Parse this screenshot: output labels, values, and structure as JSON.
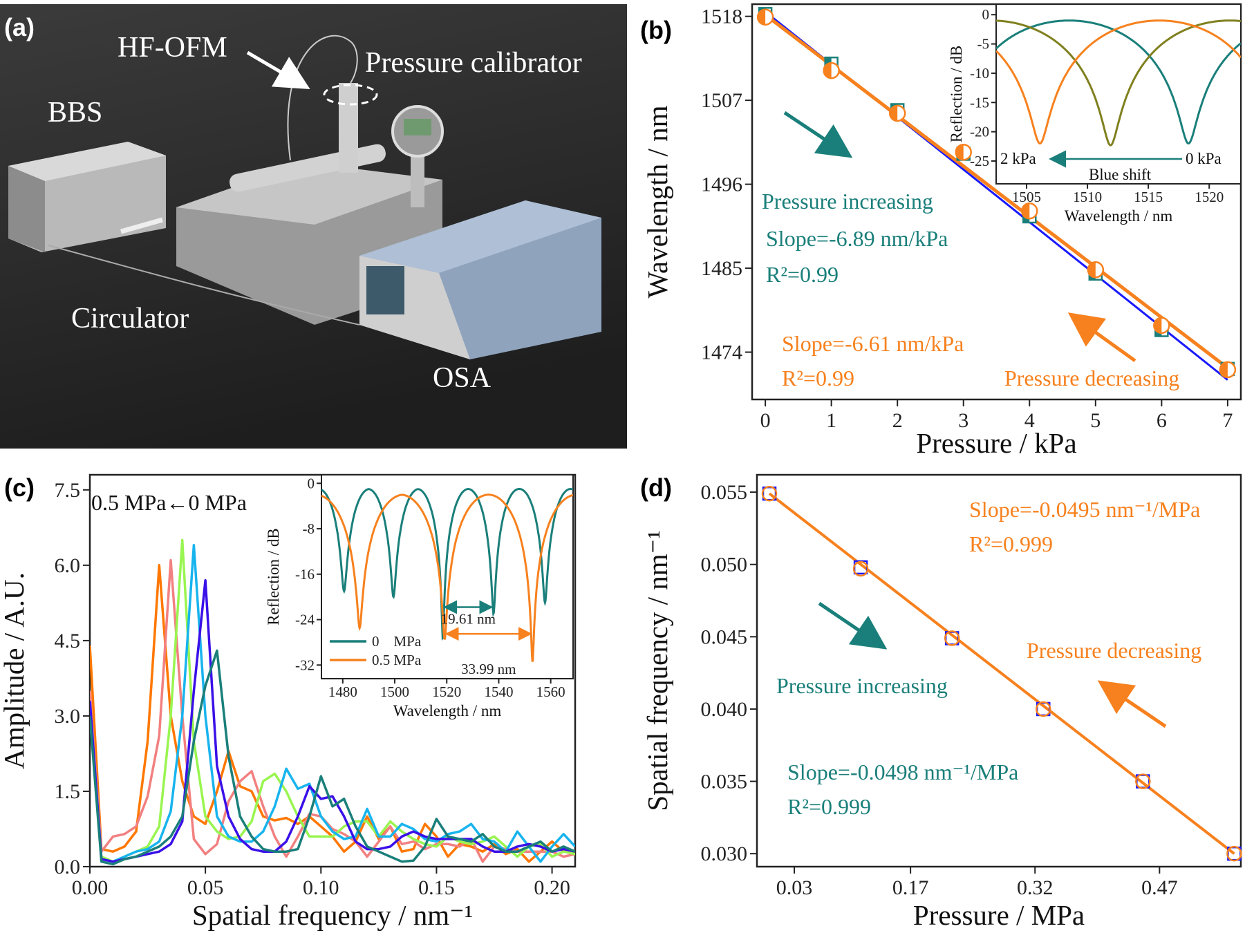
{
  "panel_labels": {
    "a": "(a)",
    "b": "(b)",
    "c": "(c)",
    "d": "(d)"
  },
  "panel_a": {
    "type": "photo-render",
    "labels": {
      "hf_ofm": "HF-OFM",
      "pressure_calibrator": "Pressure calibrator",
      "bbs": "BBS",
      "circulator": "Circulator",
      "osa": "OSA"
    }
  },
  "colors": {
    "teal": "#1a7f7a",
    "orange": "#f7811e",
    "blue_fit": "#1a1aff",
    "olive": "#808020",
    "c_series": [
      "#ff7700",
      "#f28080",
      "#99f550",
      "#18b4ee",
      "#3a10e8",
      "#1a7f7a"
    ]
  },
  "chart_data": [
    {
      "id": "b",
      "type": "scatter",
      "xlabel": "Pressure / kPa",
      "ylabel": "Wavelength / nm",
      "xlim": [
        -0.2,
        7.2
      ],
      "ylim": [
        1467.8,
        1519.6
      ],
      "xticks": [
        0,
        1,
        2,
        3,
        4,
        5,
        6,
        7
      ],
      "yticks": [
        1474,
        1485,
        1496,
        1507,
        1518
      ],
      "series": [
        {
          "name": "Pressure increasing",
          "marker": "square",
          "x": [
            0,
            1,
            2,
            3,
            4,
            5,
            6,
            7
          ],
          "y": [
            1518.3,
            1511.8,
            1505.7,
            1500.0,
            1491.8,
            1484.3,
            1476.9,
            1471.8
          ],
          "fit": {
            "slope": -6.89,
            "y0": 1518.6
          }
        },
        {
          "name": "Pressure decreasing",
          "marker": "circle",
          "x": [
            0,
            1,
            2,
            3,
            4,
            5,
            6,
            7
          ],
          "y": [
            1517.9,
            1510.9,
            1505.3,
            1500.2,
            1492.5,
            1484.8,
            1477.5,
            1471.7
          ],
          "fit": {
            "slope": -6.61,
            "y0": 1518.2
          }
        }
      ],
      "annotations": {
        "increasing": "Pressure increasing",
        "slope_inc": "Slope=-6.89 nm/kPa",
        "r2_inc": "R²=0.99",
        "slope_dec": "Slope=-6.61 nm/kPa",
        "r2_dec": "R²=0.99",
        "decreasing": "Pressure decreasing"
      }
    },
    {
      "id": "b_inset",
      "type": "line",
      "xlabel": "Wavelength / nm",
      "ylabel": "Reflection / dB",
      "xlim": [
        1502.5,
        1522.6
      ],
      "ylim": [
        -28.9,
        1.8
      ],
      "xticks": [
        1505,
        1510,
        1515,
        1520
      ],
      "yticks": [
        0,
        -5,
        -10,
        -15,
        -20,
        -25
      ],
      "period": 19.6,
      "max_db": -1,
      "series": [
        {
          "label": "0 kPa",
          "color": "teal",
          "dips": [
            {
              "wavelength": 1518.3,
              "depth": -22
            },
            {
              "wavelength": 1498.7,
              "depth": -22
            }
          ]
        },
        {
          "label": "",
          "color": "olive",
          "dips": [
            {
              "wavelength": 1511.9,
              "depth": -22.3
            },
            {
              "wavelength": 1531.5,
              "depth": -22.3
            }
          ]
        },
        {
          "label": "2 kPa",
          "color": "orange",
          "dips": [
            {
              "wavelength": 1506.1,
              "depth": -22
            },
            {
              "wavelength": 1525.7,
              "depth": -22
            }
          ]
        }
      ],
      "annotations": {
        "from": "0 kPa",
        "to": "2 kPa",
        "shift": "Blue shift"
      }
    },
    {
      "id": "c",
      "type": "line",
      "xlabel": "Spatial frequency / nm⁻¹",
      "ylabel": "Amplitude / A.U.",
      "xlim": [
        0,
        0.21
      ],
      "ylim": [
        0,
        7.8
      ],
      "xticks": [
        "0.00",
        "0.05",
        "0.10",
        "0.15",
        "0.20"
      ],
      "yticks": [
        "0.0",
        "1.5",
        "3.0",
        "4.5",
        "6.0",
        "7.5"
      ],
      "x_step": 0.005,
      "series": [
        {
          "values": [
            4.4,
            0.35,
            0.3,
            0.4,
            0.7,
            2.5,
            6.0,
            3.0,
            1.7,
            1.0,
            0.85,
            1.5,
            2.3,
            1.6,
            1.5,
            1.0,
            0.92,
            0.97,
            0.85,
            1.0,
            0.8,
            0.6,
            0.3,
            0.5,
            1.0,
            0.55,
            0.8,
            0.3,
            0.35,
            0.85,
            0.6,
            0.2,
            0.45,
            0.4,
            0.3,
            0.45,
            0.25,
            0.35,
            0.1,
            0.3,
            0.5,
            0.3,
            0.3
          ]
        },
        {
          "values": [
            3.5,
            0.3,
            0.6,
            0.65,
            0.8,
            1.4,
            2.6,
            6.1,
            3.0,
            0.55,
            0.25,
            0.45,
            1.3,
            1.7,
            1.9,
            1.2,
            0.6,
            0.2,
            0.6,
            1.05,
            1.0,
            0.75,
            0.65,
            0.5,
            0.2,
            0.5,
            0.8,
            0.45,
            0.5,
            0.35,
            0.45,
            0.45,
            0.4,
            0.55,
            0.1,
            0.4,
            0.35,
            0.3,
            0.3,
            0.3,
            0.3,
            0.2,
            0.25
          ]
        },
        {
          "values": [
            3.0,
            0.2,
            0.1,
            0.2,
            0.3,
            0.4,
            0.8,
            3.0,
            6.5,
            2.5,
            1.0,
            0.7,
            0.55,
            0.6,
            0.9,
            1.7,
            1.85,
            1.5,
            1.0,
            0.6,
            0.6,
            0.6,
            0.8,
            0.9,
            0.9,
            0.6,
            0.9,
            0.7,
            0.55,
            0.45,
            0.4,
            0.6,
            0.5,
            0.45,
            0.5,
            0.6,
            0.4,
            0.2,
            0.4,
            0.45,
            0.2,
            0.3,
            0.25
          ]
        },
        {
          "values": [
            3.3,
            0.15,
            0.1,
            0.2,
            0.3,
            0.35,
            0.5,
            1.1,
            3.0,
            6.4,
            3.0,
            1.0,
            0.6,
            0.5,
            0.5,
            0.7,
            1.2,
            1.95,
            1.55,
            1.65,
            1.0,
            0.7,
            0.55,
            0.6,
            1.15,
            0.6,
            0.6,
            0.85,
            0.75,
            0.55,
            0.5,
            0.65,
            0.7,
            0.85,
            0.55,
            0.5,
            0.3,
            0.7,
            0.4,
            0.1,
            0.4,
            0.65,
            0.4
          ]
        },
        {
          "values": [
            3.3,
            0.15,
            0.1,
            0.15,
            0.2,
            0.25,
            0.3,
            0.45,
            0.9,
            3.5,
            5.7,
            2.0,
            1.0,
            0.55,
            0.35,
            0.3,
            0.3,
            0.5,
            1.0,
            1.6,
            1.35,
            1.4,
            1.0,
            0.5,
            0.35,
            0.35,
            0.4,
            0.6,
            0.7,
            0.6,
            0.55,
            0.55,
            0.55,
            0.55,
            0.4,
            0.3,
            0.3,
            0.4,
            0.45,
            0.4,
            0.3,
            0.35,
            0.3
          ]
        },
        {
          "values": [
            3.0,
            0.1,
            0.05,
            0.15,
            0.2,
            0.3,
            0.4,
            0.6,
            1.0,
            2.5,
            3.6,
            4.3,
            2.2,
            1.0,
            0.6,
            0.35,
            0.3,
            0.3,
            0.35,
            1.0,
            1.8,
            1.2,
            1.35,
            0.8,
            0.4,
            0.3,
            0.2,
            0.1,
            0.12,
            0.4,
            0.95,
            0.6,
            0.55,
            0.5,
            0.65,
            0.4,
            0.3,
            0.3,
            0.4,
            0.5,
            0.3,
            0.4,
            0.3
          ]
        }
      ],
      "annotations": {
        "shift": "0.5 MPa←0 MPa"
      }
    },
    {
      "id": "c_inset",
      "type": "line",
      "xlabel": "Wavelength / nm",
      "ylabel": "Reflection / dB",
      "xlim": [
        1471.8,
        1568.6
      ],
      "ylim": [
        -34.4,
        1.5
      ],
      "xticks": [
        1480,
        1500,
        1520,
        1540,
        1560
      ],
      "yticks": [
        0,
        -8,
        -16,
        -24,
        -32
      ],
      "legend": "lower-left",
      "series": [
        {
          "name": "0    MPa",
          "color": "teal",
          "period": 19.61,
          "max_db": -1,
          "dips": [
            {
              "wavelength": 1461.2,
              "depth": -19
            },
            {
              "wavelength": 1480.5,
              "depth": -19
            },
            {
              "wavelength": 1499.5,
              "depth": -20
            },
            {
              "wavelength": 1518.5,
              "depth": -27.5
            },
            {
              "wavelength": 1538.0,
              "depth": -23
            },
            {
              "wavelength": 1557.8,
              "depth": -21
            },
            {
              "wavelength": 1577.4,
              "depth": -21
            }
          ]
        },
        {
          "name": "0.5 MPa",
          "color": "orange",
          "period": 33.99,
          "max_db": -2,
          "dips": [
            {
              "wavelength": 1452.5,
              "depth": -25
            },
            {
              "wavelength": 1486.5,
              "depth": -25.5
            },
            {
              "wavelength": 1519.2,
              "depth": -27.5
            },
            {
              "wavelength": 1553.0,
              "depth": -31.5
            },
            {
              "wavelength": 1587.0,
              "depth": -31
            }
          ]
        }
      ],
      "annotations": {
        "fsr_0": {
          "text": "19.61 nm",
          "from": 1518.5,
          "to": 1538.0,
          "y": -21.8
        },
        "fsr_05": {
          "text": "33.99 nm",
          "from": 1519.2,
          "to": 1553.0,
          "y": -26.5
        }
      }
    },
    {
      "id": "d",
      "type": "scatter",
      "xlabel": "Pressure / MPa",
      "ylabel": "Spatial frequency / nm⁻¹",
      "xlim": [
        -0.015,
        0.568
      ],
      "ylim": [
        0.0291,
        0.0562
      ],
      "xticks": [
        "0.03",
        "0.17",
        "0.32",
        "0.47"
      ],
      "xtick_values": [
        0.03,
        0.17,
        0.32,
        0.47
      ],
      "yticks": [
        "0.030",
        "0.035",
        "0.040",
        "0.045",
        "0.050",
        "0.055"
      ],
      "series": [
        {
          "name": "Pressure increasing",
          "marker": "square",
          "x": [
            0.0,
            0.11,
            0.22,
            0.33,
            0.45,
            0.56
          ],
          "y": [
            0.0549,
            0.0498,
            0.0449,
            0.04,
            0.035,
            0.03
          ]
        },
        {
          "name": "Pressure decreasing",
          "marker": "circle",
          "x": [
            0.0,
            0.11,
            0.22,
            0.33,
            0.45,
            0.56
          ],
          "y": [
            0.0549,
            0.0497,
            0.0449,
            0.04,
            0.035,
            0.03
          ]
        }
      ],
      "annotations": {
        "slope_dec": "Slope=-0.0495 nm⁻¹/MPa",
        "r2_dec": "R²=0.999",
        "decreasing": "Pressure decreasing",
        "increasing": "Pressure increasing",
        "slope_inc": "Slope=-0.0498 nm⁻¹/MPa",
        "r2_inc": "R²=0.999"
      }
    }
  ]
}
